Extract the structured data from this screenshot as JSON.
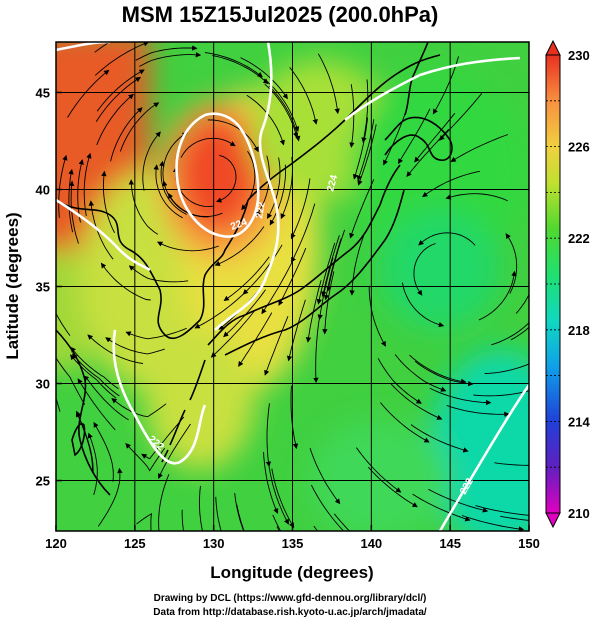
{
  "title": "MSM 15Z15Jul2025 (200.0hPa)",
  "xaxis": {
    "label": "Longitude (degrees)",
    "min": 120,
    "max": 150,
    "ticks": [
      "120",
      "125",
      "130",
      "135",
      "140",
      "145",
      "150"
    ]
  },
  "yaxis": {
    "label": "Latitude  (degrees)",
    "min": 22.4,
    "max": 47.6,
    "ticks": [
      "25",
      "30",
      "35",
      "40",
      "45"
    ]
  },
  "colorbar": {
    "min": 210,
    "max": 230,
    "labels": [
      "230",
      "226",
      "222",
      "218",
      "214",
      "210"
    ],
    "colors": [
      "#e000c0",
      "#3020c0",
      "#1070e8",
      "#10c8d8",
      "#10e090",
      "#30d840",
      "#a0e030",
      "#e8e040",
      "#f8a040",
      "#f05030",
      "#e83020"
    ]
  },
  "contours": {
    "labels": [
      "224",
      "224",
      "222",
      "222",
      "222"
    ]
  },
  "footer": {
    "line1": "Drawing by DCL (https://www.gfd-dennou.org/library/dcl/)",
    "line2": "Data from http://database.rish.kyoto-u.ac.jp/arch/jmadata/"
  }
}
